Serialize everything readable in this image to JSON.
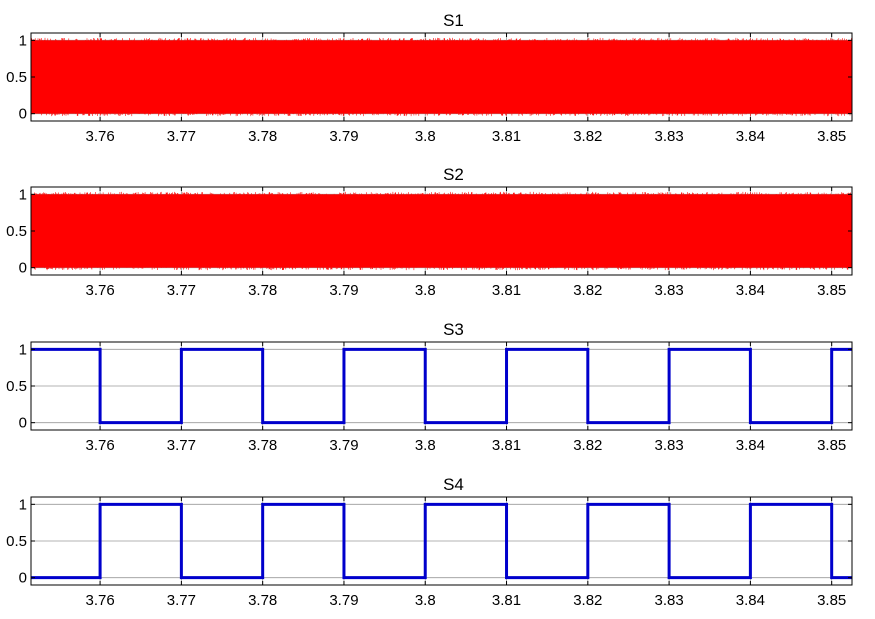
{
  "chart_data": [
    {
      "type": "line",
      "title": "S1",
      "xlabel": "",
      "ylabel": "",
      "xlim": [
        3.7515,
        3.8525
      ],
      "ylim": [
        -0.1,
        1.1
      ],
      "xticks": [
        "3.76",
        "3.77",
        "3.78",
        "3.79",
        "3.8",
        "3.81",
        "3.82",
        "3.83",
        "3.84",
        "3.85"
      ],
      "yticks": [
        "0",
        "0.5",
        "1"
      ],
      "grid": true,
      "signal": "high-frequency switching between 0 and 1",
      "x": [
        3.7515,
        3.8525
      ],
      "min": 0,
      "max": 1,
      "color": "#ff0000"
    },
    {
      "type": "line",
      "title": "S2",
      "xlabel": "",
      "ylabel": "",
      "xlim": [
        3.7515,
        3.8525
      ],
      "ylim": [
        -0.1,
        1.1
      ],
      "xticks": [
        "3.76",
        "3.77",
        "3.78",
        "3.79",
        "3.8",
        "3.81",
        "3.82",
        "3.83",
        "3.84",
        "3.85"
      ],
      "yticks": [
        "0",
        "0.5",
        "1"
      ],
      "grid": true,
      "signal": "high-frequency switching between 0 and 1",
      "x": [
        3.7515,
        3.8525
      ],
      "min": 0,
      "max": 1,
      "color": "#ff0000"
    },
    {
      "type": "line",
      "title": "S3",
      "xlabel": "",
      "ylabel": "",
      "xlim": [
        3.7515,
        3.8525
      ],
      "ylim": [
        -0.1,
        1.1
      ],
      "xticks": [
        "3.76",
        "3.77",
        "3.78",
        "3.79",
        "3.8",
        "3.81",
        "3.82",
        "3.83",
        "3.84",
        "3.85"
      ],
      "yticks": [
        "0",
        "0.5",
        "1"
      ],
      "grid": true,
      "signal": "square wave",
      "x": [
        3.7515,
        3.76,
        3.76,
        3.77,
        3.77,
        3.78,
        3.78,
        3.79,
        3.79,
        3.8,
        3.8,
        3.81,
        3.81,
        3.82,
        3.82,
        3.83,
        3.83,
        3.84,
        3.84,
        3.85,
        3.85,
        3.8525
      ],
      "y": [
        1,
        1,
        0,
        0,
        1,
        1,
        0,
        0,
        1,
        1,
        0,
        0,
        1,
        1,
        0,
        0,
        1,
        1,
        0,
        0,
        1,
        1
      ],
      "color": "#0000cc"
    },
    {
      "type": "line",
      "title": "S4",
      "xlabel": "",
      "ylabel": "",
      "xlim": [
        3.7515,
        3.8525
      ],
      "ylim": [
        -0.1,
        1.1
      ],
      "xticks": [
        "3.76",
        "3.77",
        "3.78",
        "3.79",
        "3.8",
        "3.81",
        "3.82",
        "3.83",
        "3.84",
        "3.85"
      ],
      "yticks": [
        "0",
        "0.5",
        "1"
      ],
      "grid": true,
      "signal": "square wave",
      "x": [
        3.7515,
        3.76,
        3.76,
        3.77,
        3.77,
        3.78,
        3.78,
        3.79,
        3.79,
        3.8,
        3.8,
        3.81,
        3.81,
        3.82,
        3.82,
        3.83,
        3.83,
        3.84,
        3.84,
        3.85,
        3.85,
        3.8525
      ],
      "y": [
        0,
        0,
        1,
        1,
        0,
        0,
        1,
        1,
        0,
        0,
        1,
        1,
        0,
        0,
        1,
        1,
        0,
        0,
        1,
        1,
        0,
        0
      ],
      "color": "#0000cc"
    }
  ]
}
